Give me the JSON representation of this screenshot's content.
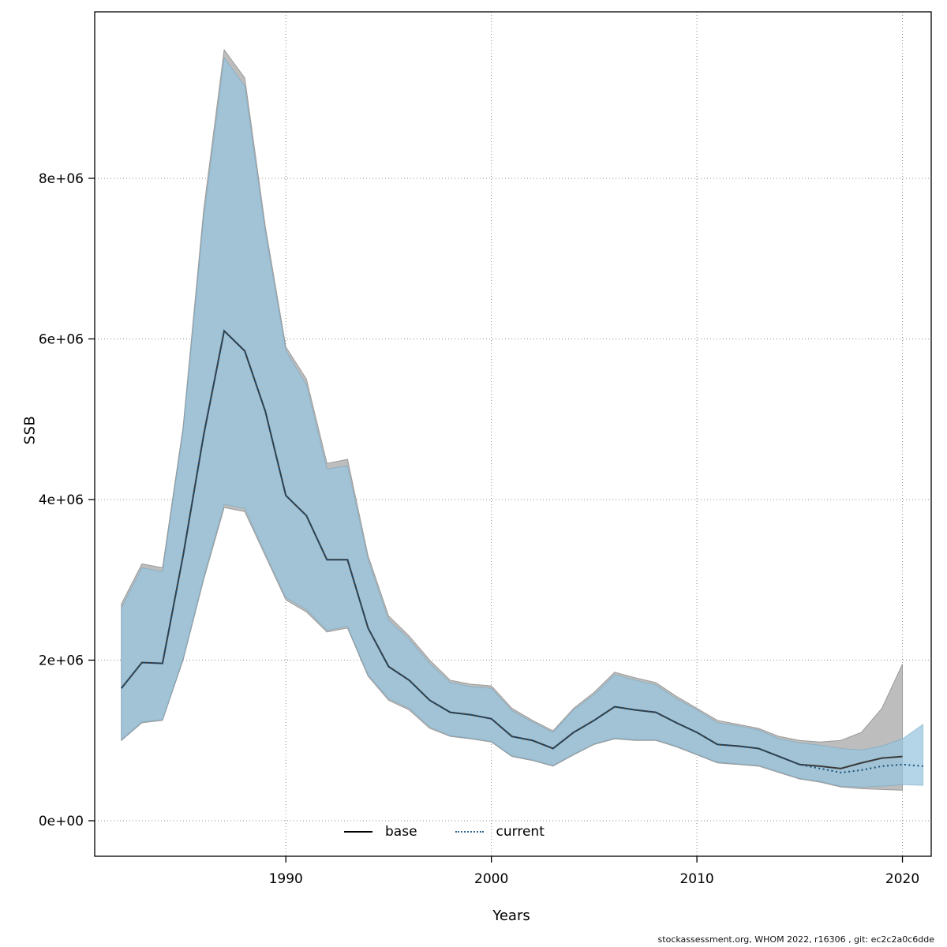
{
  "footer": {
    "text": "stockassessment.org, WHOM 2022, r16306 , git: ec2c2a0c6dde"
  },
  "chart_data": {
    "type": "area",
    "title": "",
    "xlabel": "Years",
    "ylabel": "SSB",
    "grid": true,
    "xlim": [
      1980.7,
      2021.4
    ],
    "ylim": [
      -442000,
      10073000
    ],
    "x_ticks": [
      1990,
      2000,
      2010,
      2020
    ],
    "y_ticks": [
      {
        "value": 0,
        "label": "0e+00"
      },
      {
        "value": 2000000,
        "label": "2e+06"
      },
      {
        "value": 4000000,
        "label": "4e+06"
      },
      {
        "value": 6000000,
        "label": "6e+06"
      },
      {
        "value": 8000000,
        "label": "8e+06"
      }
    ],
    "colors": {
      "base_band": "#bdbdbd",
      "current_band": "rgba(150,197,222,0.72)",
      "base_line": "#3a3a3a",
      "current_line": "#174f7c",
      "grid": "#8c8c8c",
      "box": "#000000"
    },
    "legend": {
      "position": "bottom-center",
      "entries": [
        {
          "label": "base",
          "style": "solid",
          "color": "#000000"
        },
        {
          "label": "current",
          "style": "dotted",
          "color": "#2d648e"
        }
      ]
    },
    "series": [
      {
        "name": "base",
        "years": [
          1982,
          1983,
          1984,
          1985,
          1986,
          1987,
          1988,
          1989,
          1990,
          1991,
          1992,
          1993,
          1994,
          1995,
          1996,
          1997,
          1998,
          1999,
          2000,
          2001,
          2002,
          2003,
          2004,
          2005,
          2006,
          2007,
          2008,
          2009,
          2010,
          2011,
          2012,
          2013,
          2014,
          2015,
          2016,
          2017,
          2018,
          2019,
          2020
        ],
        "median": [
          1650000,
          1970000,
          1960000,
          3300000,
          4800000,
          6100000,
          5850000,
          5100000,
          4050000,
          3800000,
          3250000,
          3250000,
          2400000,
          1920000,
          1750000,
          1500000,
          1350000,
          1320000,
          1270000,
          1050000,
          1000000,
          900000,
          1100000,
          1250000,
          1420000,
          1380000,
          1350000,
          1220000,
          1100000,
          950000,
          930000,
          900000,
          800000,
          700000,
          680000,
          650000,
          720000,
          780000,
          800000
        ],
        "upper": [
          2700000,
          3200000,
          3150000,
          4900000,
          7600000,
          9600000,
          9250000,
          7400000,
          5900000,
          5500000,
          4450000,
          4500000,
          3300000,
          2550000,
          2300000,
          2000000,
          1750000,
          1700000,
          1680000,
          1400000,
          1250000,
          1120000,
          1400000,
          1600000,
          1850000,
          1780000,
          1720000,
          1550000,
          1400000,
          1250000,
          1200000,
          1150000,
          1050000,
          1000000,
          980000,
          1000000,
          1100000,
          1400000,
          1950000
        ],
        "lower": [
          1000000,
          1220000,
          1250000,
          2000000,
          3000000,
          3900000,
          3850000,
          3300000,
          2750000,
          2600000,
          2350000,
          2400000,
          1800000,
          1500000,
          1380000,
          1150000,
          1050000,
          1020000,
          980000,
          800000,
          750000,
          680000,
          820000,
          950000,
          1020000,
          1000000,
          1000000,
          920000,
          820000,
          720000,
          700000,
          680000,
          600000,
          520000,
          480000,
          420000,
          400000,
          390000,
          380000
        ]
      },
      {
        "name": "current",
        "years": [
          1982,
          1983,
          1984,
          1985,
          1986,
          1987,
          1988,
          1989,
          1990,
          1991,
          1992,
          1993,
          1994,
          1995,
          1996,
          1997,
          1998,
          1999,
          2000,
          2001,
          2002,
          2003,
          2004,
          2005,
          2006,
          2007,
          2008,
          2009,
          2010,
          2011,
          2012,
          2013,
          2014,
          2015,
          2016,
          2017,
          2018,
          2019,
          2020,
          2021
        ],
        "median": [
          1650000,
          1970000,
          1960000,
          3300000,
          4800000,
          6100000,
          5850000,
          5100000,
          4050000,
          3800000,
          3250000,
          3250000,
          2400000,
          1920000,
          1750000,
          1500000,
          1350000,
          1320000,
          1270000,
          1050000,
          1000000,
          900000,
          1100000,
          1250000,
          1420000,
          1380000,
          1350000,
          1220000,
          1100000,
          950000,
          930000,
          900000,
          800000,
          700000,
          650000,
          600000,
          630000,
          680000,
          700000,
          680000
        ],
        "upper": [
          2650000,
          3150000,
          3100000,
          4850000,
          7500000,
          9500000,
          9150000,
          7330000,
          5850000,
          5430000,
          4380000,
          4420000,
          3250000,
          2500000,
          2260000,
          1960000,
          1720000,
          1670000,
          1650000,
          1370000,
          1230000,
          1100000,
          1380000,
          1570000,
          1820000,
          1750000,
          1690000,
          1520000,
          1380000,
          1220000,
          1180000,
          1130000,
          1020000,
          970000,
          940000,
          900000,
          880000,
          930000,
          1020000,
          1200000
        ],
        "lower": [
          1010000,
          1230000,
          1260000,
          2020000,
          3030000,
          3940000,
          3890000,
          3330000,
          2780000,
          2630000,
          2370000,
          2420000,
          1820000,
          1520000,
          1400000,
          1170000,
          1060000,
          1030000,
          990000,
          810000,
          760000,
          690000,
          830000,
          960000,
          1030000,
          1010000,
          1010000,
          930000,
          830000,
          730000,
          710000,
          690000,
          610000,
          530000,
          490000,
          430000,
          420000,
          430000,
          450000,
          440000
        ]
      }
    ]
  }
}
